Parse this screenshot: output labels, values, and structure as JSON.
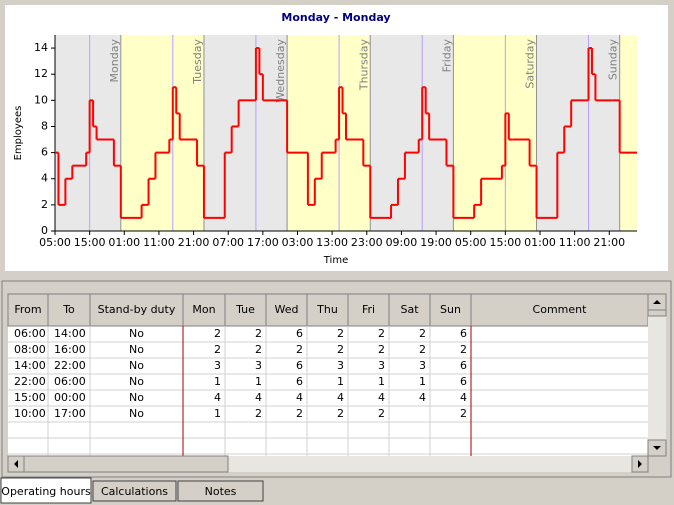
{
  "chart_data": {
    "type": "line",
    "title": "Monday - Monday",
    "xlabel": "Time",
    "ylabel": "Employees",
    "step": true,
    "color": "#ff0000",
    "x": [
      0,
      1,
      3,
      5,
      9,
      10,
      11,
      12,
      17,
      19,
      25,
      27,
      29,
      33,
      34,
      35,
      36,
      41,
      43,
      49,
      51,
      53,
      57,
      58,
      59,
      60,
      65,
      67,
      73,
      75,
      77,
      81,
      82,
      83,
      84,
      89,
      91,
      97,
      99,
      101,
      105,
      106,
      107,
      108,
      113,
      115,
      121,
      123,
      125,
      129,
      130,
      131,
      132,
      137,
      139,
      145,
      147,
      149,
      153,
      154,
      155,
      156,
      161,
      163,
      168
    ],
    "values": [
      6,
      2,
      4,
      5,
      6,
      10,
      8,
      7,
      5,
      1,
      2,
      4,
      6,
      7,
      11,
      9,
      7,
      5,
      1,
      6,
      8,
      10,
      10,
      14,
      12,
      10,
      10,
      6,
      2,
      4,
      6,
      7,
      11,
      9,
      7,
      5,
      1,
      2,
      4,
      6,
      7,
      11,
      9,
      7,
      5,
      1,
      2,
      4,
      4,
      5,
      9,
      7,
      7,
      5,
      1,
      6,
      8,
      10,
      10,
      14,
      12,
      10,
      10,
      6,
      6
    ],
    "xlim": [
      0,
      168
    ],
    "xticks": [
      {
        "value": 0,
        "label": "05:00"
      },
      {
        "value": 10,
        "label": "15:00"
      },
      {
        "value": 20,
        "label": "01:00"
      },
      {
        "value": 30,
        "label": "11:00"
      },
      {
        "value": 40,
        "label": "21:00"
      },
      {
        "value": 50,
        "label": "07:00"
      },
      {
        "value": 60,
        "label": "17:00"
      },
      {
        "value": 70,
        "label": "03:00"
      },
      {
        "value": 80,
        "label": "13:00"
      },
      {
        "value": 90,
        "label": "23:00"
      },
      {
        "value": 100,
        "label": "09:00"
      },
      {
        "value": 110,
        "label": "19:00"
      },
      {
        "value": 120,
        "label": "05:00"
      },
      {
        "value": 130,
        "label": "15:00"
      },
      {
        "value": 140,
        "label": "01:00"
      },
      {
        "value": 150,
        "label": "11:00"
      },
      {
        "value": 160,
        "label": "21:00"
      }
    ],
    "ylim": [
      0,
      15
    ],
    "yticks": [
      0,
      2,
      4,
      6,
      8,
      10,
      12,
      14
    ],
    "day_labels": [
      "Monday",
      "Tuesday",
      "Wednesday",
      "Thursday",
      "Friday",
      "Saturday",
      "Sunday"
    ]
  },
  "table": {
    "columns": [
      "From",
      "To",
      "Stand-by duty",
      "Mon",
      "Tue",
      "Wed",
      "Thu",
      "Fri",
      "Sat",
      "Sun",
      "Comment"
    ],
    "rows": [
      [
        "06:00",
        "14:00",
        "No",
        "2",
        "2",
        "6",
        "2",
        "2",
        "2",
        "6"
      ],
      [
        "08:00",
        "16:00",
        "No",
        "2",
        "2",
        "2",
        "2",
        "2",
        "2",
        "2"
      ],
      [
        "14:00",
        "22:00",
        "No",
        "3",
        "3",
        "6",
        "3",
        "3",
        "3",
        "6"
      ],
      [
        "22:00",
        "06:00",
        "No",
        "1",
        "1",
        "6",
        "1",
        "1",
        "1",
        "6"
      ],
      [
        "15:00",
        "00:00",
        "No",
        "4",
        "4",
        "4",
        "4",
        "4",
        "4",
        "4"
      ],
      [
        "10:00",
        "17:00",
        "No",
        "1",
        "2",
        "2",
        "2",
        "2",
        null,
        "2"
      ]
    ]
  },
  "tabs": [
    "Operating hours",
    "Calculations",
    "Notes"
  ]
}
